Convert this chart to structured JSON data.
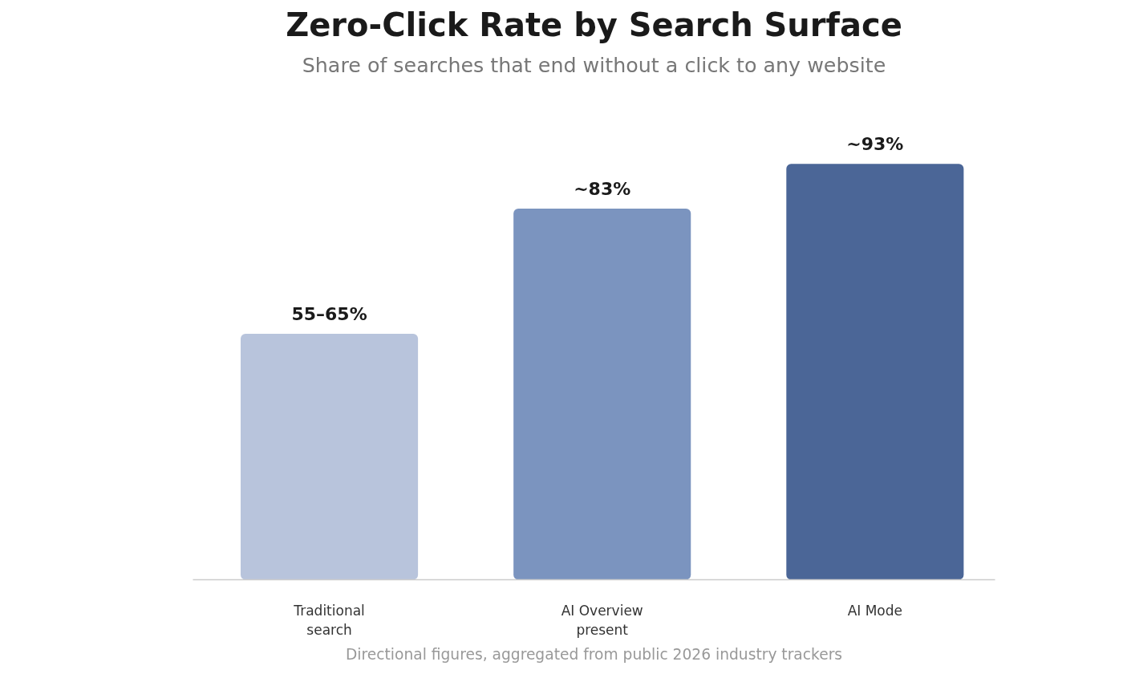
{
  "chart_data": {
    "type": "bar",
    "title": "Zero-Click Rate by Search Surface",
    "subtitle": "Share of searches that end without a click to any website",
    "categories": [
      "Traditional\nsearch",
      "AI Overview\npresent",
      "AI Mode"
    ],
    "values": [
      55,
      83,
      93
    ],
    "value_labels": [
      "55–65%",
      "~83%",
      "~93%"
    ],
    "colors": [
      "#b8c4dc",
      "#7b94bf",
      "#4b6697"
    ],
    "grid": false,
    "annotations": [
      "Directional figures, aggregated from public 2026 industry trackers"
    ]
  }
}
